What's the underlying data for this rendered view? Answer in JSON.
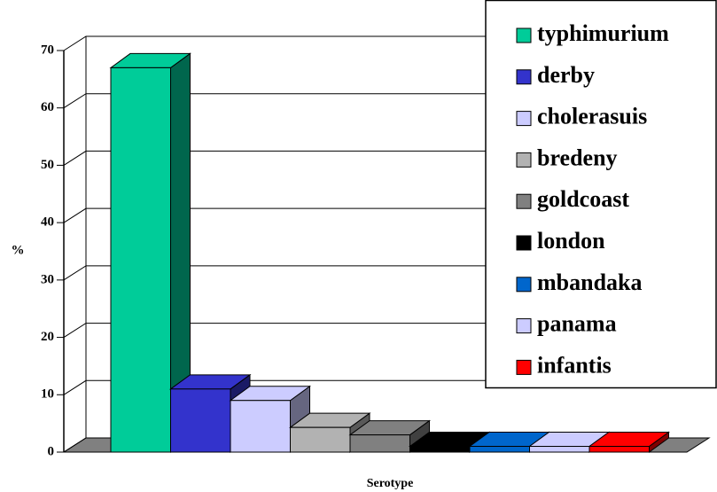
{
  "chart_data": {
    "type": "bar3d",
    "xlabel": "Serotype",
    "ylabel": "%",
    "ylim": [
      0,
      70
    ],
    "yticks": [
      0,
      10,
      20,
      30,
      40,
      50,
      60,
      70
    ],
    "grid": true,
    "legend": "upper right",
    "series": [
      {
        "name": "typhimurium",
        "color": "#00cc99",
        "values": [
          67
        ]
      },
      {
        "name": "derby",
        "color": "#3333cc",
        "values": [
          11
        ]
      },
      {
        "name": "cholerasuis",
        "color": "#ccccff",
        "values": [
          9
        ]
      },
      {
        "name": "bredeny",
        "color": "#b2b2b2",
        "values": [
          4.3
        ]
      },
      {
        "name": "goldcoast",
        "color": "#808080",
        "values": [
          3
        ]
      },
      {
        "name": "london",
        "color": "#000000",
        "values": [
          1
        ]
      },
      {
        "name": "mbandaka",
        "color": "#0066cc",
        "values": [
          1
        ]
      },
      {
        "name": "panama",
        "color": "#ccccff",
        "values": [
          1
        ]
      },
      {
        "name": "infantis",
        "color": "#ff0000",
        "values": [
          1
        ]
      }
    ]
  }
}
